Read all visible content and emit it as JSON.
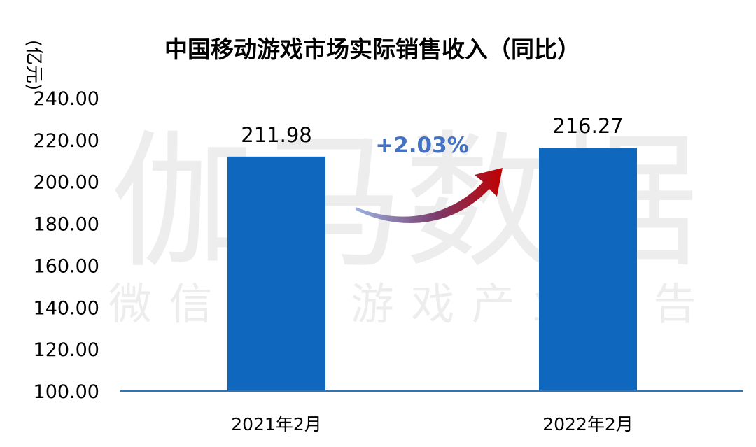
{
  "chart_data": {
    "type": "bar",
    "title": "中国移动游戏市场实际销售收入（同比）",
    "ylabel": "(亿元)",
    "categories": [
      "2021年2月",
      "2022年2月"
    ],
    "values": [
      211.98,
      216.27
    ],
    "value_labels": [
      "211.98",
      "216.27"
    ],
    "ylim": [
      100,
      240
    ],
    "yticks": [
      "100.00",
      "120.00",
      "140.00",
      "160.00",
      "180.00",
      "200.00",
      "220.00",
      "240.00"
    ],
    "grid": false,
    "bar_color": "#0F67BE",
    "annotation": {
      "text": "+2.03%",
      "color": "#4472C4"
    },
    "watermark": {
      "main": "伽马数据",
      "sub": "微信号：游戏产业报告"
    }
  }
}
